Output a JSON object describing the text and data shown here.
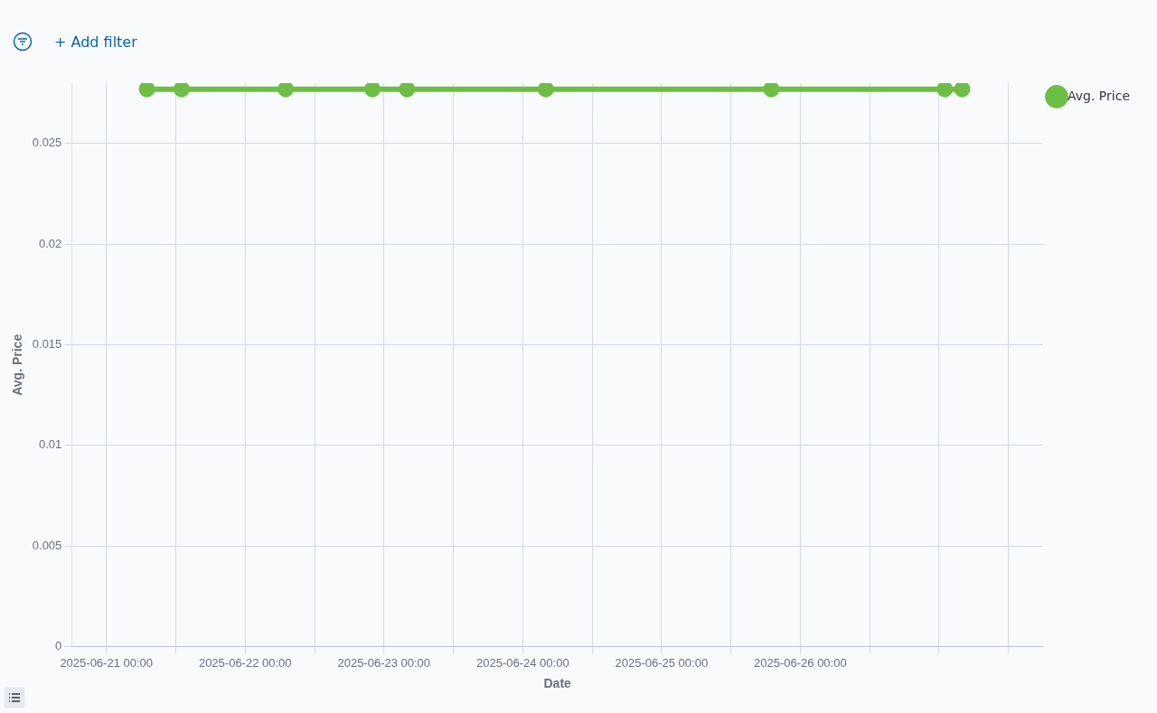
{
  "chart_data": {
    "type": "line",
    "xlabel": "Date",
    "ylabel": "Avg. Price",
    "annotations": [
      "+ Add filter"
    ],
    "x": [
      "2025-06-21T07:00",
      "2025-06-21T13:00",
      "2025-06-22T07:00",
      "2025-06-22T22:00",
      "2025-06-23T04:00",
      "2025-06-24T04:00",
      "2025-06-25T19:00",
      "2025-06-27T01:00",
      "2025-06-27T04:00"
    ],
    "series": [
      {
        "name": "Avg. Price",
        "color": "#6dbe45",
        "values": [
          0.0277,
          0.0277,
          0.0277,
          0.0277,
          0.0277,
          0.0277,
          0.0277,
          0.0277,
          0.0277
        ]
      }
    ],
    "xlim": [
      "2025-06-20T18:00",
      "2025-06-27T18:00"
    ],
    "xticks": [
      {
        "value": "2025-06-21T00:00",
        "label": "2025-06-21 00:00"
      },
      {
        "value": "2025-06-21T12:00",
        "label": null
      },
      {
        "value": "2025-06-22T00:00",
        "label": "2025-06-22 00:00"
      },
      {
        "value": "2025-06-22T12:00",
        "label": null
      },
      {
        "value": "2025-06-23T00:00",
        "label": "2025-06-23 00:00"
      },
      {
        "value": "2025-06-23T12:00",
        "label": null
      },
      {
        "value": "2025-06-24T00:00",
        "label": "2025-06-24 00:00"
      },
      {
        "value": "2025-06-24T12:00",
        "label": null
      },
      {
        "value": "2025-06-25T00:00",
        "label": "2025-06-25 00:00"
      },
      {
        "value": "2025-06-25T12:00",
        "label": null
      },
      {
        "value": "2025-06-26T00:00",
        "label": "2025-06-26 00:00"
      },
      {
        "value": "2025-06-26T12:00",
        "label": null
      },
      {
        "value": "2025-06-27T00:00",
        "label": null
      },
      {
        "value": "2025-06-27T12:00",
        "label": null
      }
    ],
    "ylim": [
      0,
      0.028
    ],
    "yticks": [
      0,
      0.005,
      0.01,
      0.015,
      0.02,
      0.025
    ],
    "grid": true,
    "legend": "top right",
    "marker": "circle",
    "line_style": "solid"
  }
}
